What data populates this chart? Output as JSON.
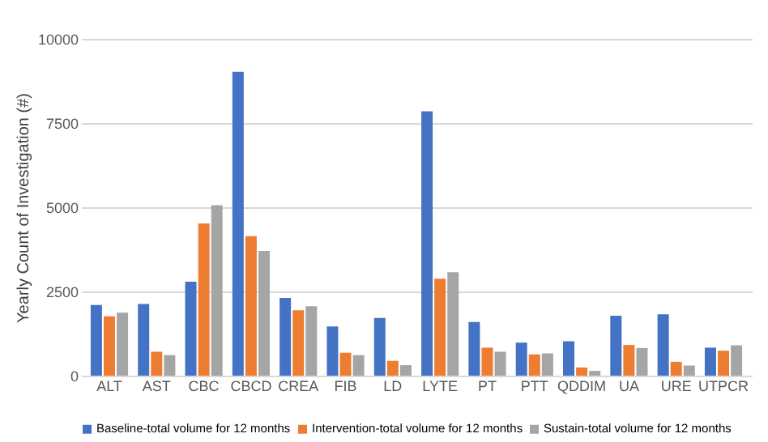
{
  "chart_data": {
    "type": "bar",
    "ylabel": "Yearly Count of Investigation (#)",
    "categories": [
      "ALT",
      "AST",
      "CBC",
      "CBCD",
      "CREA",
      "FIB",
      "LD",
      "LYTE",
      "PT",
      "PTT",
      "QDDIM",
      "UA",
      "URE",
      "UTPCR"
    ],
    "series": [
      {
        "name": "Baseline-total volume for 12 months",
        "color": "#4472c4",
        "values": [
          2100,
          2130,
          2790,
          9020,
          2310,
          1460,
          1710,
          7850,
          1590,
          980,
          1020,
          1780,
          1820,
          830
        ]
      },
      {
        "name": "Intervention-total volume for 12 months",
        "color": "#ed7d31",
        "values": [
          1760,
          710,
          4520,
          4140,
          1940,
          680,
          440,
          2880,
          830,
          630,
          240,
          910,
          410,
          740
        ]
      },
      {
        "name": "Sustain-total volume for 12 months",
        "color": "#a5a5a5",
        "values": [
          1870,
          610,
          5060,
          3700,
          2060,
          610,
          310,
          3070,
          710,
          660,
          140,
          820,
          300,
          900
        ]
      }
    ],
    "ylim": [
      0,
      10000
    ],
    "yticks": [
      0,
      2500,
      5000,
      7500,
      10000
    ],
    "grid": "y",
    "legend": "bottom"
  }
}
